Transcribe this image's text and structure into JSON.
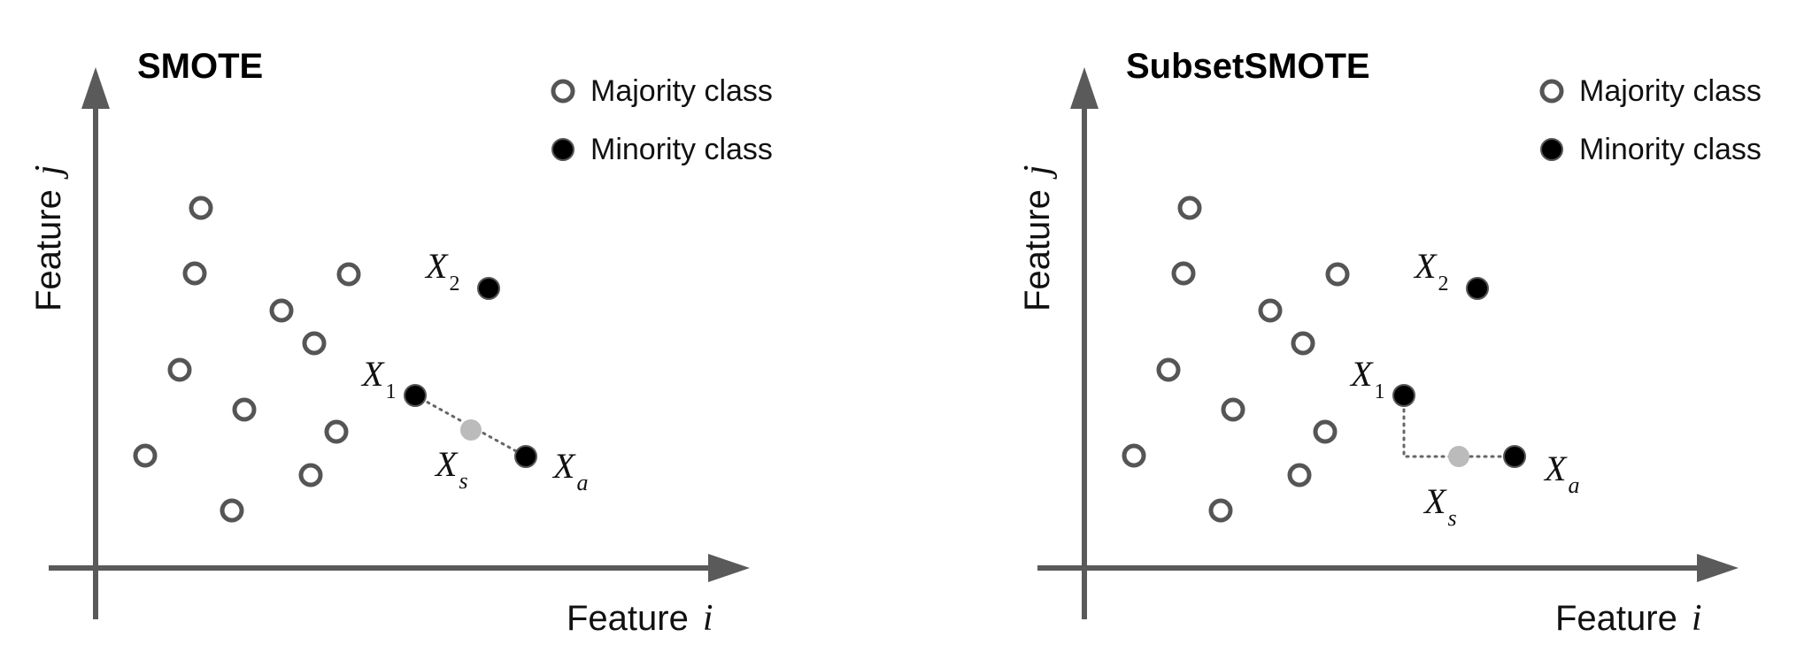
{
  "colors": {
    "axis": "#555555",
    "majority": "#555555",
    "minority": "#000000",
    "synthetic": "#bbbbbb"
  },
  "legend": {
    "majority_label": "Majority class",
    "minority_label": "Minority class"
  },
  "axes": {
    "x_label": "Feature",
    "x_var": "i",
    "y_label": "Feature",
    "y_var": "j"
  },
  "points": {
    "x1": {
      "name": "X",
      "sub": "1"
    },
    "x2": {
      "name": "X",
      "sub": "2"
    },
    "xa": {
      "name": "X",
      "sub": "a"
    },
    "xs": {
      "name": "X",
      "sub": "s"
    }
  },
  "panels": [
    {
      "title": "SMOTE",
      "interpolation": "straight"
    },
    {
      "title": "SubsetSMOTE",
      "interpolation": "subset"
    }
  ]
}
